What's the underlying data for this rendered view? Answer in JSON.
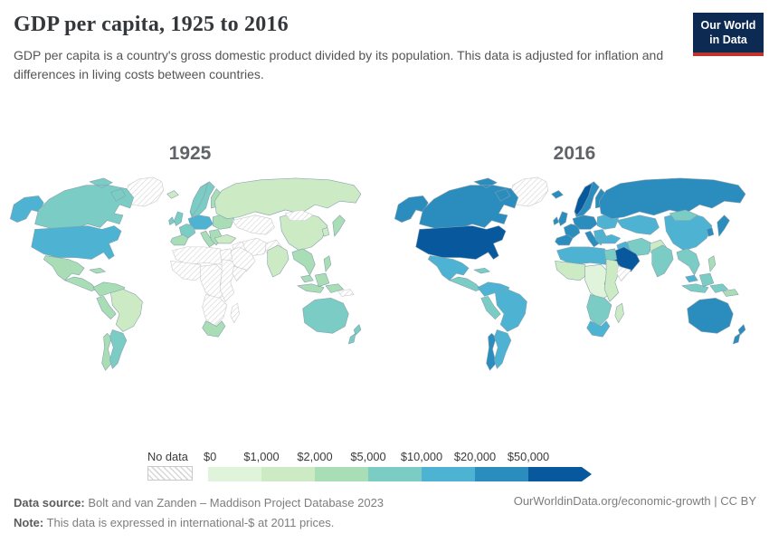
{
  "header": {
    "title": "GDP per capita, 1925 to 2016",
    "subtitle": "GDP per capita is a country's gross domestic product divided by its population. This data is adjusted for inflation and differences in living costs between countries."
  },
  "logo": {
    "line1": "Our World",
    "line2": "in Data",
    "navy": "#0c2a52",
    "red": "#c0342e"
  },
  "footer": {
    "source_label": "Data source:",
    "source_text": "Bolt and van Zanden – Maddison Project Database 2023",
    "note_label": "Note:",
    "note_text": "This data is expressed in international-$ at 2011 prices.",
    "link": "OurWorldinData.org/economic-growth | CC BY"
  },
  "chart_data": {
    "type": "choropleth_map",
    "title": "GDP per capita, 1925 to 2016",
    "unit": "international-$ at 2011 prices",
    "years": [
      "1925",
      "2016"
    ],
    "legend": {
      "no_data_label": "No data",
      "tick_labels": [
        "$0",
        "$1,000",
        "$2,000",
        "$5,000",
        "$10,000",
        "$20,000",
        "$50,000"
      ],
      "bin_ranges": [
        "$0–$1,000",
        "$1,000–$2,000",
        "$2,000–$5,000",
        "$5,000–$10,000",
        "$10,000–$20,000",
        "$20,000–$50,000",
        "$50,000+"
      ],
      "colors": [
        "#e0f3db",
        "#ccebc5",
        "#a8ddb5",
        "#7bccc4",
        "#4eb3d3",
        "#2b8cbe",
        "#08589e"
      ],
      "no_data_pattern": "diagonal-hatch",
      "country_border_color": "#86a0ad",
      "no_data_border_color": "#c9c9c9"
    },
    "maps": [
      {
        "year": "1925",
        "regions": {
          "greenland": "no_data",
          "alaska": 4,
          "canada": 3,
          "usa": 4,
          "mexico": 2,
          "central-america": 2,
          "cuba": 2,
          "colombia-venezuela": 2,
          "peru": 2,
          "brazil": 1,
          "chile": 2,
          "argentina": 3,
          "iceland": 1,
          "uk": 3,
          "france": 3,
          "germany-central": 4,
          "iberia": 2,
          "italy": 2,
          "scandinavia": 3,
          "norway": 3,
          "finland": 2,
          "eastern-europe": 2,
          "balkans": 2,
          "russia": 1,
          "central-asia": "no_data",
          "turkey": 1,
          "levant-iraq": "no_data",
          "iran": "no_data",
          "afghan-pak": "no_data",
          "saudi": "no_data",
          "north-africa": "no_data",
          "egypt": "no_data",
          "west-africa": "no_data",
          "central-africa": "no_data",
          "east-africa": "no_data",
          "horn": "no_data",
          "southern-africa": "no_data",
          "south-africa": 2,
          "madagascar": "no_data",
          "india": 1,
          "china": 1,
          "mongolia": "no_data",
          "korea": 1,
          "japan": 2,
          "se-asia": 2,
          "philippines": 2,
          "malaysia": 2,
          "indonesia": 2,
          "png": "no_data",
          "australia": 3,
          "new-zealand": 3
        }
      },
      {
        "year": "2016",
        "regions": {
          "greenland": "no_data",
          "alaska": 5,
          "canada": 5,
          "usa": 6,
          "mexico": 4,
          "central-america": 3,
          "cuba": 3,
          "colombia-venezuela": 4,
          "peru": 3,
          "brazil": 4,
          "chile": 5,
          "argentina": 4,
          "iceland": 5,
          "uk": 5,
          "france": 5,
          "germany-central": 5,
          "iberia": 5,
          "italy": 5,
          "scandinavia": 5,
          "norway": 6,
          "finland": 5,
          "eastern-europe": 4,
          "balkans": 4,
          "russia": 5,
          "central-asia": 4,
          "turkey": 4,
          "levant-iraq": 4,
          "iran": 3,
          "afghan-pak": 1,
          "saudi": 6,
          "north-africa": 4,
          "egypt": 3,
          "west-africa": 1,
          "central-africa": 0,
          "east-africa": 1,
          "horn": "no_data",
          "southern-africa": 3,
          "south-africa": 4,
          "madagascar": 1,
          "india": 3,
          "china": 4,
          "mongolia": 3,
          "korea": 5,
          "japan": 5,
          "se-asia": 3,
          "philippines": 2,
          "malaysia": 4,
          "indonesia": 3,
          "png": 2,
          "australia": 5,
          "new-zealand": 5
        }
      }
    ]
  }
}
